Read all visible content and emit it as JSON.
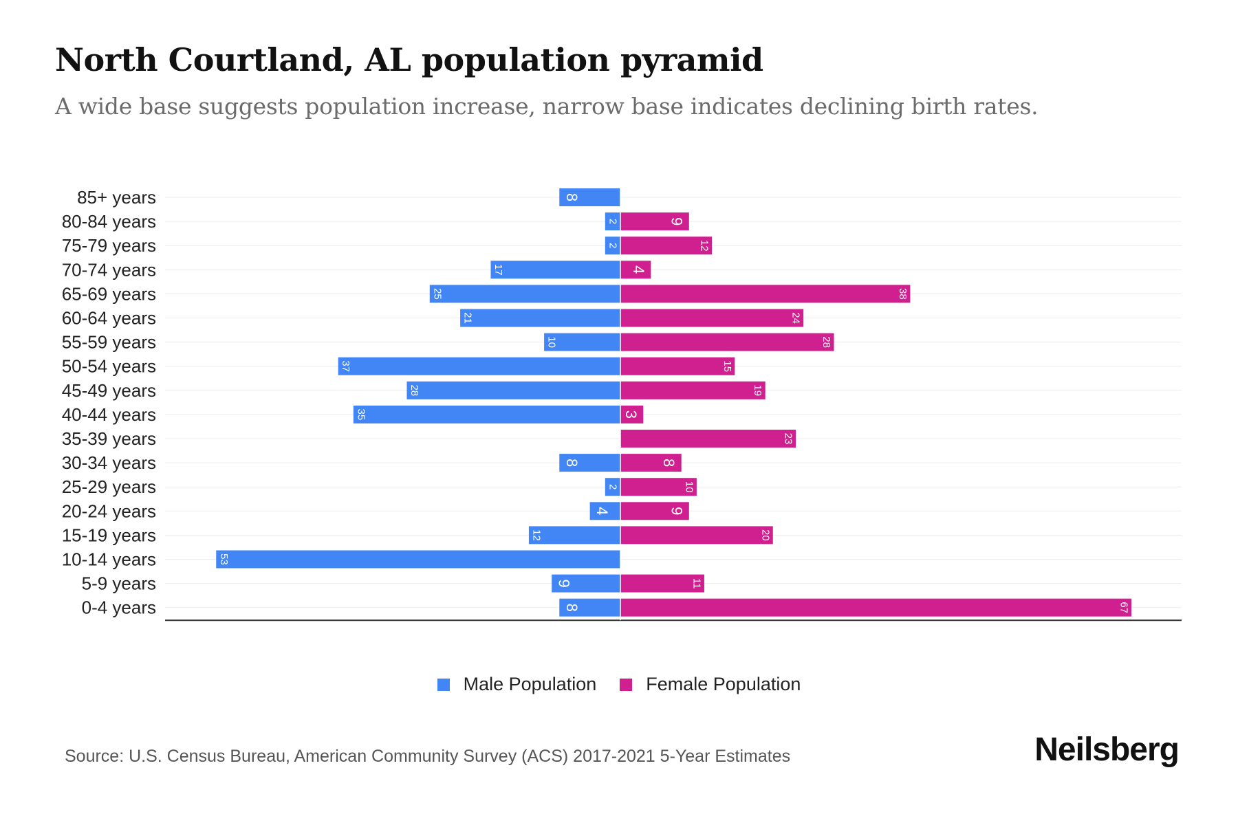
{
  "header": {
    "title": "North Courtland, AL population pyramid",
    "subtitle": "A wide base suggests population increase, narrow base indicates declining birth rates."
  },
  "chart_data": {
    "type": "bar",
    "orientation": "horizontal-pyramid",
    "title": "North Courtland, AL population pyramid",
    "categories": [
      "85+ years",
      "80-84 years",
      "75-79 years",
      "70-74 years",
      "65-69 years",
      "60-64 years",
      "55-59 years",
      "50-54 years",
      "45-49 years",
      "40-44 years",
      "35-39 years",
      "30-34 years",
      "25-29 years",
      "20-24 years",
      "15-19 years",
      "10-14 years",
      "5-9 years",
      "0-4 years"
    ],
    "series": [
      {
        "name": "Male Population",
        "color": "#4285f4",
        "side": "left",
        "values": [
          8,
          2,
          2,
          17,
          25,
          21,
          10,
          37,
          28,
          35,
          0,
          8,
          2,
          4,
          12,
          53,
          9,
          8
        ]
      },
      {
        "name": "Female Population",
        "color": "#d0208f",
        "side": "right",
        "values": [
          0,
          9,
          12,
          4,
          38,
          24,
          28,
          15,
          19,
          3,
          23,
          8,
          10,
          9,
          20,
          0,
          11,
          67
        ]
      }
    ],
    "xlabel": "",
    "ylabel": "",
    "grid": true,
    "legend": "bottom-center"
  },
  "legend": {
    "male_label": "Male Population",
    "female_label": "Female Population",
    "male_color": "#4285f4",
    "female_color": "#d0208f"
  },
  "footer": {
    "source": "Source: U.S. Census Bureau, American Community Survey (ACS) 2017-2021 5-Year Estimates",
    "brand": "Neilsberg"
  }
}
